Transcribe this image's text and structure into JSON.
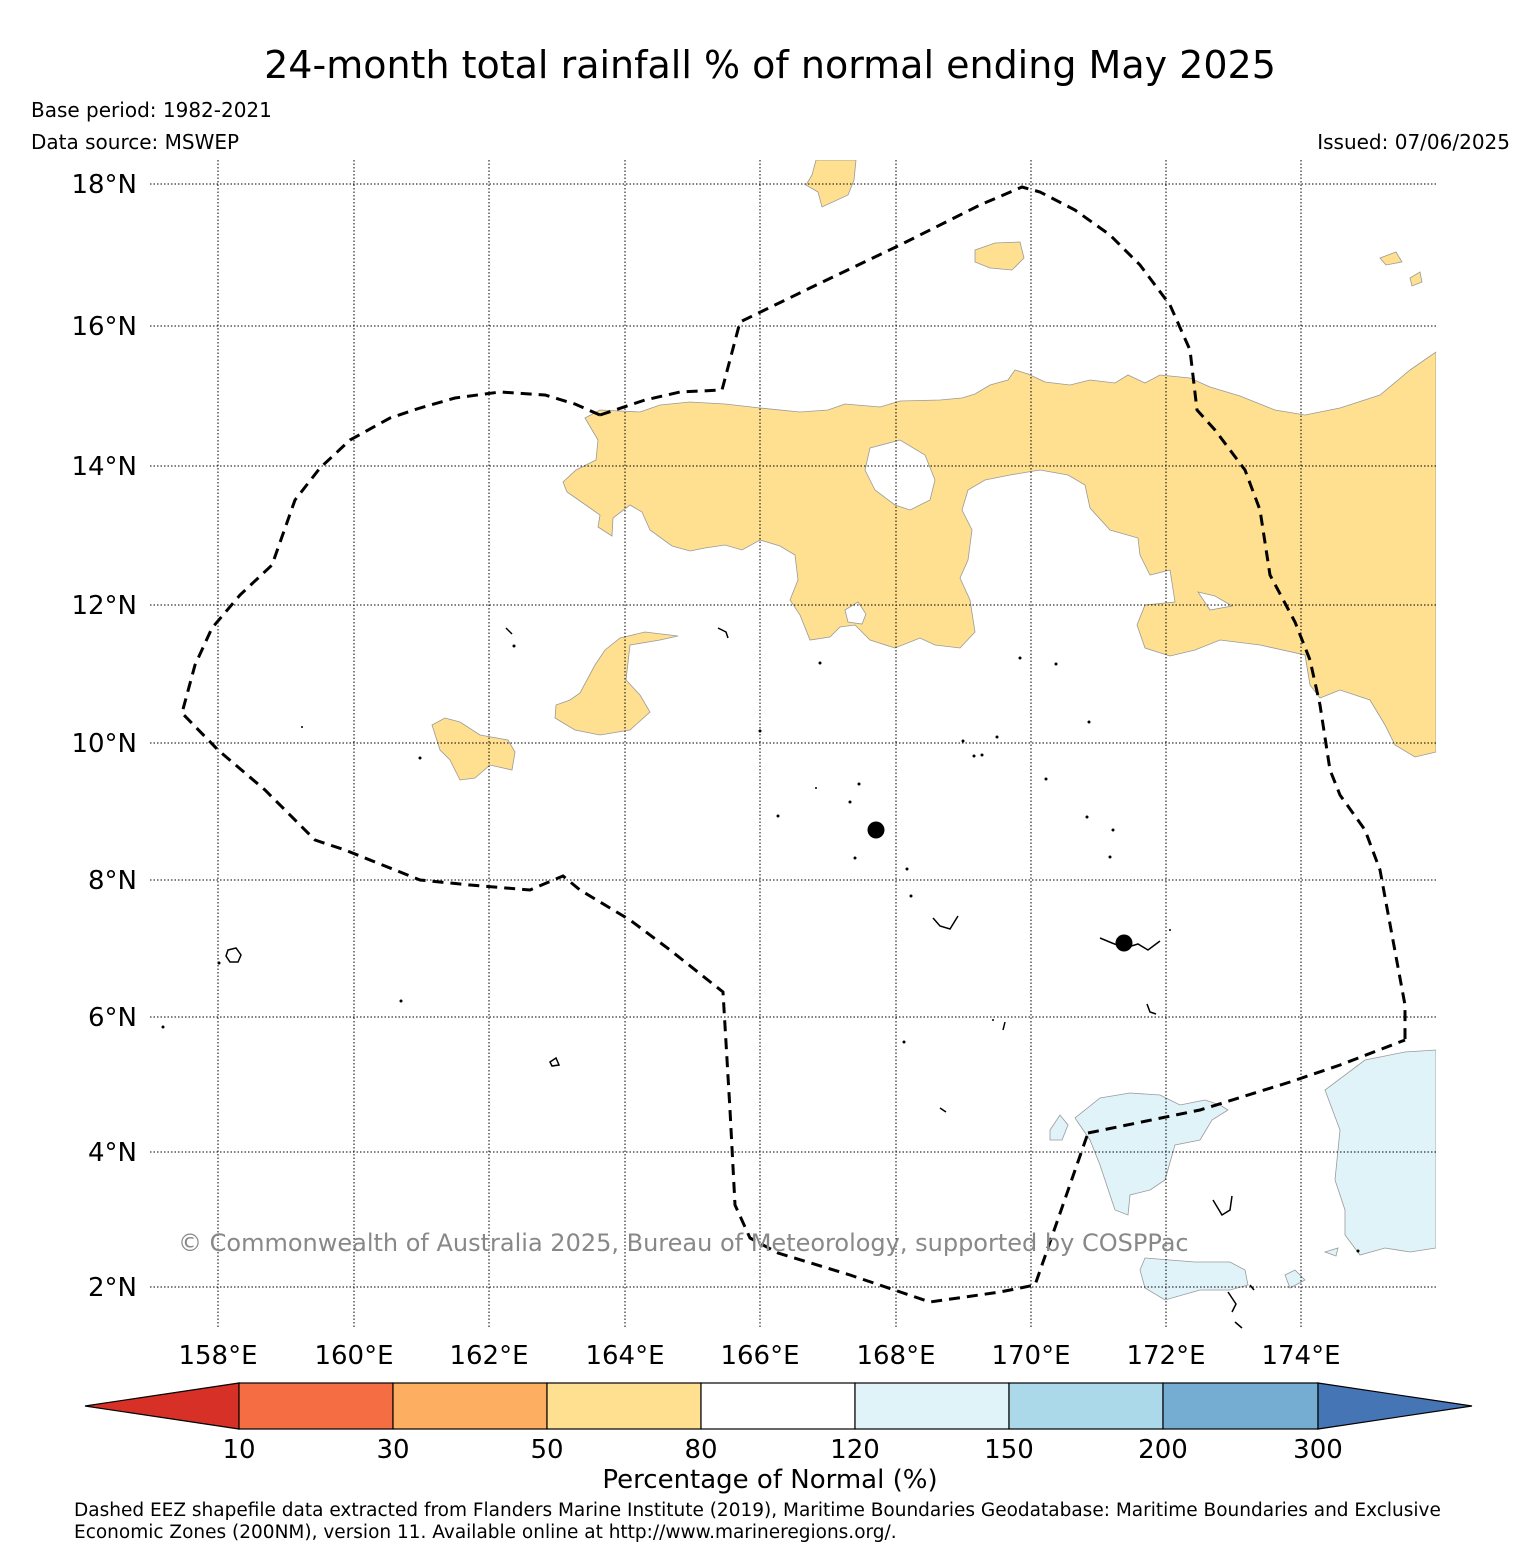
{
  "title": "24-month total rainfall % of normal ending May 2025",
  "base_period": "Base period: 1982-2021",
  "data_source": "Data source: MSWEP",
  "issued": "Issued: 07/06/2025",
  "copyright": "© Commonwealth of Australia 2025, Bureau of Meteorology, supported by COSPPac",
  "lat_labels": [
    "18°N",
    "16°N",
    "14°N",
    "12°N",
    "10°N",
    "8°N",
    "6°N",
    "4°N",
    "2°N"
  ],
  "lon_labels": [
    "158°E",
    "160°E",
    "162°E",
    "164°E",
    "166°E",
    "168°E",
    "170°E",
    "172°E",
    "174°E"
  ],
  "colorbar": {
    "label": "Percentage of Normal (%)",
    "ticks": [
      "10",
      "30",
      "50",
      "80",
      "120",
      "150",
      "200",
      "300"
    ],
    "colors": [
      "#d73027",
      "#f46d43",
      "#fdae61",
      "#fee090",
      "#ffffff",
      "#e0f3f8",
      "#abd9e9",
      "#74add1",
      "#4575b4"
    ]
  },
  "footer": "Dashed EEZ shapefile data extracted from Flanders Marine Institute (2019), Maritime Boundaries Geodatabase: Maritime Boundaries and Exclusive Economic Zones (200NM), version 11. Available online at http://www.marineregions.org/."
}
